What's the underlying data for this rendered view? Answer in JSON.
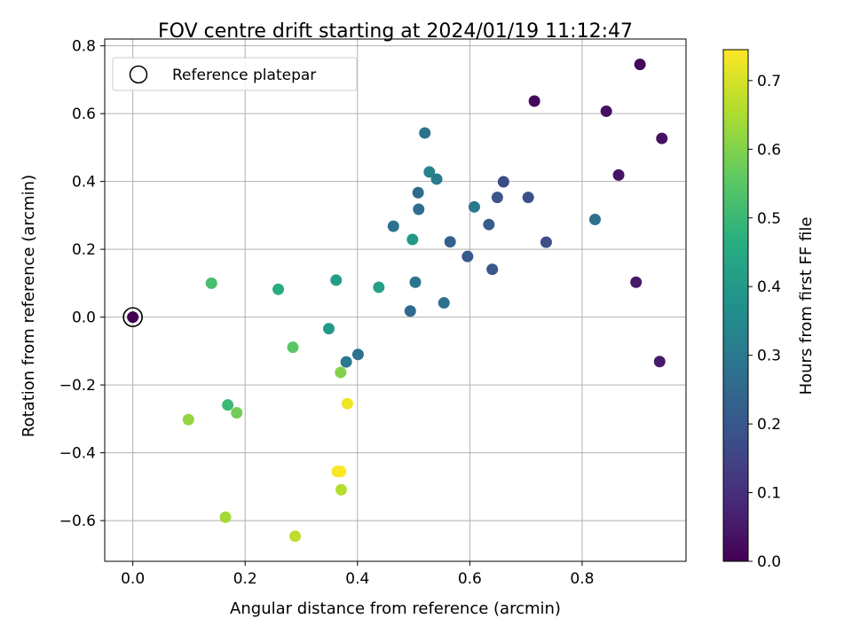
{
  "chart_data": {
    "type": "scatter",
    "title": "FOV centre drift starting at 2024/01/19 11:12:47",
    "xlabel": "Angular distance from reference (arcmin)",
    "ylabel": "Rotation from reference (arcmin)",
    "xlim": [
      -0.05,
      0.985
    ],
    "ylim": [
      -0.72,
      0.82
    ],
    "xticks": [
      0.0,
      0.2,
      0.4,
      0.6,
      0.8
    ],
    "xtick_labels": [
      "0.0",
      "0.2",
      "0.4",
      "0.6",
      "0.8"
    ],
    "yticks": [
      -0.6,
      -0.4,
      -0.2,
      0.0,
      0.2,
      0.4,
      0.6,
      0.8
    ],
    "ytick_labels": [
      "−0.6",
      "−0.4",
      "−0.2",
      "0.0",
      "0.2",
      "0.4",
      "0.6",
      "0.8"
    ],
    "grid": true,
    "legend": {
      "placement": "top-left",
      "entries": [
        "Reference platepar"
      ]
    },
    "reference_point": {
      "x": 0.0,
      "y": 0.0
    },
    "colorbar": {
      "label": "Hours from first FF file",
      "colormap": "viridis",
      "range": [
        0.0,
        0.745
      ],
      "ticks": [
        0.0,
        0.1,
        0.2,
        0.3,
        0.4,
        0.5,
        0.6,
        0.7
      ],
      "tick_labels": [
        "0.0",
        "0.1",
        "0.2",
        "0.3",
        "0.4",
        "0.5",
        "0.6",
        "0.7"
      ]
    },
    "points": [
      {
        "x": 0.0,
        "y": 0.0,
        "c": 0.0
      },
      {
        "x": 0.903,
        "y": 0.745,
        "c": 0.01
      },
      {
        "x": 0.715,
        "y": 0.637,
        "c": 0.02
      },
      {
        "x": 0.843,
        "y": 0.607,
        "c": 0.03
      },
      {
        "x": 0.942,
        "y": 0.527,
        "c": 0.035
      },
      {
        "x": 0.865,
        "y": 0.419,
        "c": 0.04
      },
      {
        "x": 0.896,
        "y": 0.103,
        "c": 0.05
      },
      {
        "x": 0.938,
        "y": -0.131,
        "c": 0.055
      },
      {
        "x": 0.66,
        "y": 0.399,
        "c": 0.17
      },
      {
        "x": 0.704,
        "y": 0.353,
        "c": 0.18
      },
      {
        "x": 0.649,
        "y": 0.353,
        "c": 0.2
      },
      {
        "x": 0.736,
        "y": 0.221,
        "c": 0.18
      },
      {
        "x": 0.634,
        "y": 0.273,
        "c": 0.22
      },
      {
        "x": 0.64,
        "y": 0.141,
        "c": 0.2
      },
      {
        "x": 0.565,
        "y": 0.222,
        "c": 0.23
      },
      {
        "x": 0.596,
        "y": 0.179,
        "c": 0.21
      },
      {
        "x": 0.823,
        "y": 0.288,
        "c": 0.27
      },
      {
        "x": 0.608,
        "y": 0.325,
        "c": 0.3
      },
      {
        "x": 0.52,
        "y": 0.543,
        "c": 0.28
      },
      {
        "x": 0.508,
        "y": 0.367,
        "c": 0.26
      },
      {
        "x": 0.509,
        "y": 0.318,
        "c": 0.27
      },
      {
        "x": 0.464,
        "y": 0.268,
        "c": 0.28
      },
      {
        "x": 0.528,
        "y": 0.428,
        "c": 0.33
      },
      {
        "x": 0.541,
        "y": 0.407,
        "c": 0.31
      },
      {
        "x": 0.503,
        "y": 0.103,
        "c": 0.29
      },
      {
        "x": 0.554,
        "y": 0.042,
        "c": 0.28
      },
      {
        "x": 0.494,
        "y": 0.018,
        "c": 0.26
      },
      {
        "x": 0.401,
        "y": -0.11,
        "c": 0.28
      },
      {
        "x": 0.38,
        "y": -0.132,
        "c": 0.3
      },
      {
        "x": 0.498,
        "y": 0.229,
        "c": 0.4
      },
      {
        "x": 0.438,
        "y": 0.088,
        "c": 0.42
      },
      {
        "x": 0.362,
        "y": 0.109,
        "c": 0.41
      },
      {
        "x": 0.349,
        "y": -0.034,
        "c": 0.4
      },
      {
        "x": 0.259,
        "y": 0.082,
        "c": 0.46
      },
      {
        "x": 0.14,
        "y": 0.1,
        "c": 0.52
      },
      {
        "x": 0.285,
        "y": -0.089,
        "c": 0.55
      },
      {
        "x": 0.37,
        "y": -0.163,
        "c": 0.6
      },
      {
        "x": 0.169,
        "y": -0.259,
        "c": 0.5
      },
      {
        "x": 0.185,
        "y": -0.282,
        "c": 0.58
      },
      {
        "x": 0.099,
        "y": -0.302,
        "c": 0.62
      },
      {
        "x": 0.382,
        "y": -0.255,
        "c": 0.73
      },
      {
        "x": 0.364,
        "y": -0.455,
        "c": 0.74
      },
      {
        "x": 0.37,
        "y": -0.455,
        "c": 0.745
      },
      {
        "x": 0.371,
        "y": -0.509,
        "c": 0.66
      },
      {
        "x": 0.165,
        "y": -0.59,
        "c": 0.64
      },
      {
        "x": 0.289,
        "y": -0.646,
        "c": 0.67
      }
    ]
  }
}
